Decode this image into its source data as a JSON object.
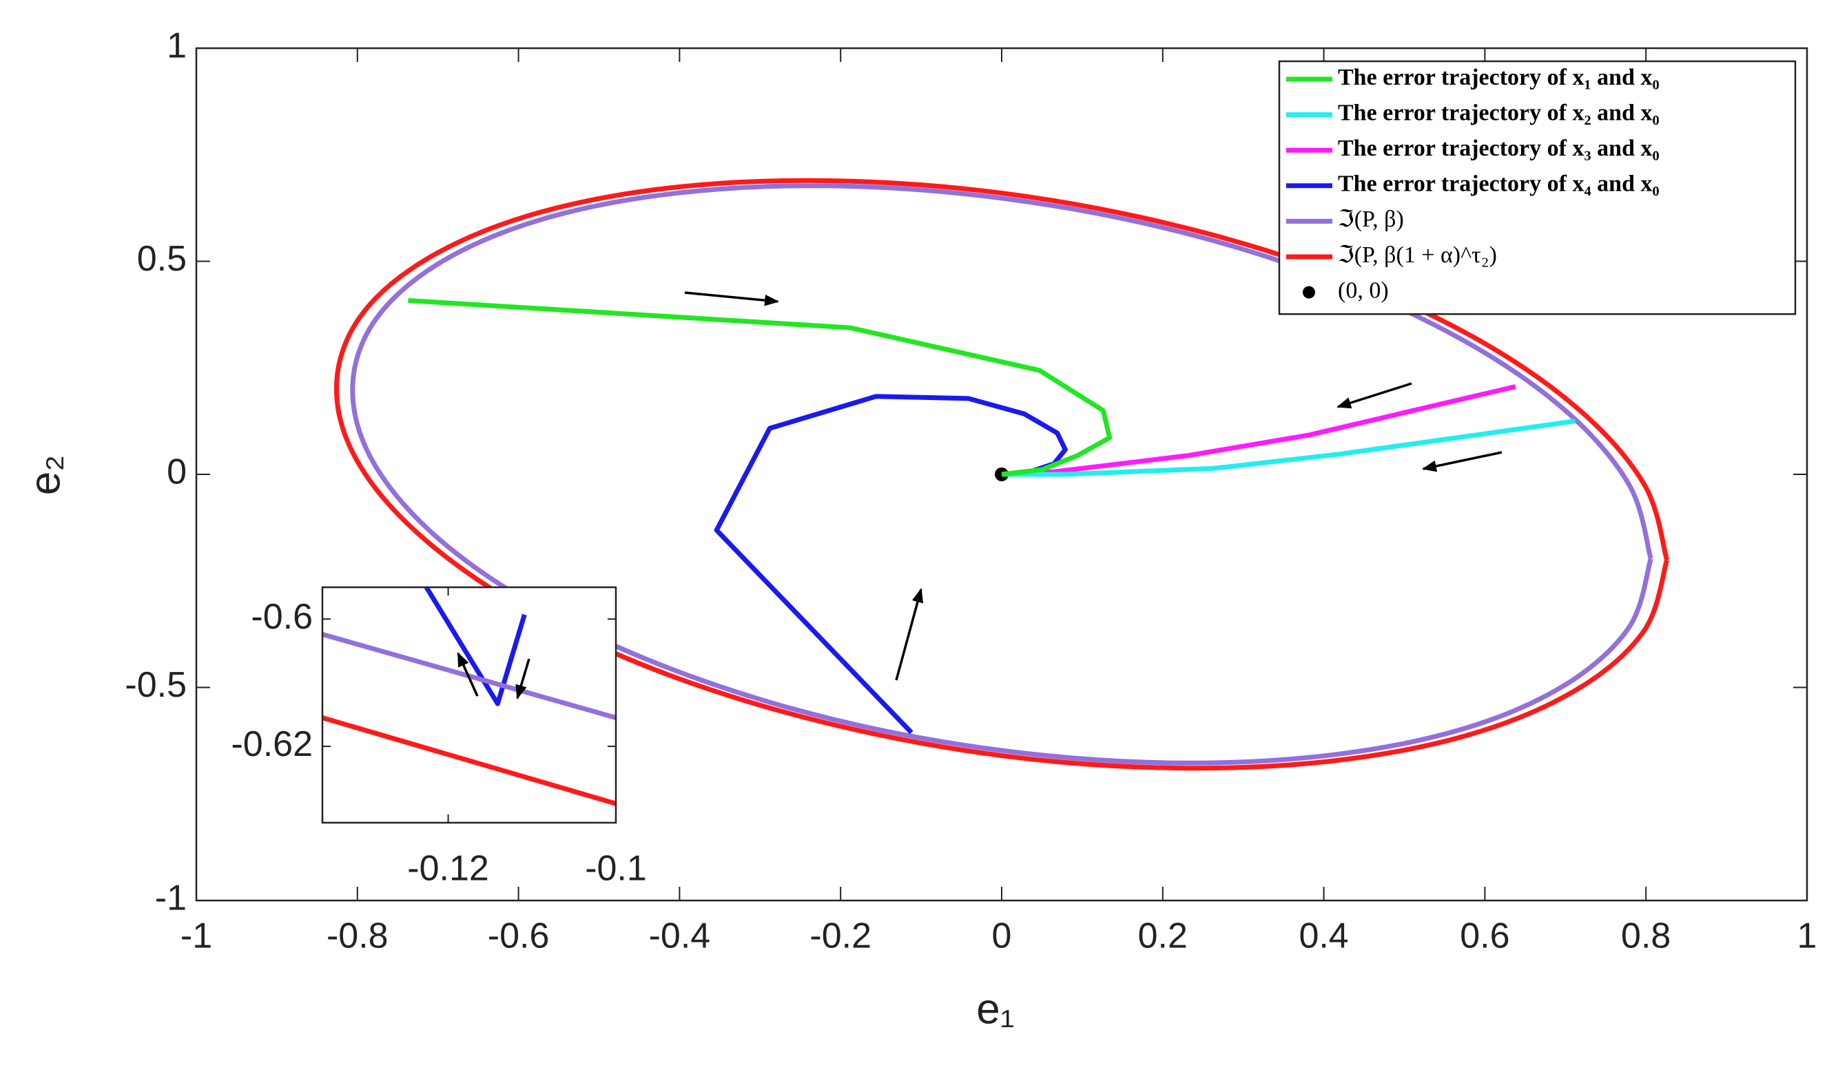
{
  "chart_data": [
    {
      "type": "line",
      "xlabel": "e₁",
      "ylabel": "e₂",
      "xlim": [
        -1,
        1
      ],
      "ylim": [
        -1,
        1
      ],
      "xticks": [
        -1,
        -0.8,
        -0.6,
        -0.4,
        -0.2,
        0,
        0.2,
        0.4,
        0.6,
        0.8,
        1
      ],
      "yticks": [
        -1,
        -0.5,
        0,
        0.5,
        1
      ],
      "grid": false,
      "legend": "upper right",
      "series": [
        {
          "name": "The error trajectory of x₁ and x₀",
          "color": "#22e622",
          "x": [
            -0.737,
            -0.188,
            0.047,
            0.126,
            0.134,
            0.094,
            0.05,
            0
          ],
          "values": [
            0.408,
            0.344,
            0.244,
            0.15,
            0.086,
            0.044,
            0.011,
            0
          ]
        },
        {
          "name": "The error trajectory of x₂ and x₀",
          "color": "#22eeee",
          "x": [
            0.712,
            0.418,
            0.263,
            0.079,
            0
          ],
          "values": [
            0.125,
            0.047,
            0.014,
            0,
            0
          ]
        },
        {
          "name": "The error trajectory of x₃ and x₀",
          "color": "#ff1aff",
          "x": [
            0.638,
            0.381,
            0.231,
            0.065,
            0
          ],
          "values": [
            0.206,
            0.092,
            0.044,
            0.006,
            0
          ]
        },
        {
          "name": "The error trajectory of x₄ and x₀",
          "color": "#1a1aee",
          "x": [
            -0.112,
            -0.354,
            -0.288,
            -0.156,
            -0.041,
            0.028,
            0.069,
            0.079,
            0.065,
            0.035,
            0
          ],
          "values": [
            -0.606,
            -0.131,
            0.108,
            0.183,
            0.178,
            0.142,
            0.097,
            0.058,
            0.025,
            0.006,
            0
          ]
        },
        {
          "name": "ℑ(P, β)",
          "color": "#9370db",
          "curve": "smooth",
          "x": [
            0.806,
            0.779,
            0.698,
            0.57,
            0.403,
            0.209,
            0,
            -0.209,
            -0.403,
            -0.57,
            -0.698,
            -0.779,
            -0.806,
            -0.779,
            -0.698,
            -0.57,
            -0.403,
            -0.209,
            0,
            0.209,
            0.403,
            0.57,
            0.698,
            0.779,
            0.806
          ],
          "values": [
            -0.198,
            -0.024,
            0.153,
            0.318,
            0.462,
            0.575,
            0.648,
            0.677,
            0.66,
            0.599,
            0.496,
            0.359,
            0.198,
            0.024,
            -0.153,
            -0.318,
            -0.462,
            -0.575,
            -0.648,
            -0.677,
            -0.66,
            -0.599,
            -0.496,
            -0.359,
            -0.198
          ]
        },
        {
          "name": "ℑ(P, β(1 + α)^τ₂)",
          "color": "#ff1a1a",
          "curve": "smooth",
          "x": [
            0.826,
            0.798,
            0.715,
            0.584,
            0.413,
            0.214,
            0,
            -0.214,
            -0.413,
            -0.584,
            -0.715,
            -0.798,
            -0.826,
            -0.798,
            -0.715,
            -0.584,
            -0.413,
            -0.214,
            0,
            0.214,
            0.413,
            0.584,
            0.715,
            0.798,
            0.826
          ],
          "values": [
            -0.201,
            -0.024,
            0.155,
            0.324,
            0.471,
            0.585,
            0.66,
            0.689,
            0.672,
            0.609,
            0.504,
            0.366,
            0.201,
            0.024,
            -0.155,
            -0.324,
            -0.471,
            -0.585,
            -0.66,
            -0.689,
            -0.672,
            -0.609,
            -0.504,
            -0.366,
            -0.201
          ]
        },
        {
          "name": "(0, 0)",
          "color": "#000000",
          "marker": "dot",
          "x": [
            0
          ],
          "values": [
            0
          ]
        }
      ]
    },
    {
      "type": "line",
      "xlim": [
        -0.135,
        -0.1
      ],
      "ylim": [
        -0.632,
        -0.595
      ],
      "xticks": [
        -0.12,
        -0.1
      ],
      "yticks": [
        -0.62,
        -0.6
      ],
      "series": [
        {
          "color": "#9370db",
          "x": [
            -0.135,
            -0.1
          ],
          "values": [
            -0.6024,
            -0.6155
          ]
        },
        {
          "color": "#ff1a1a",
          "x": [
            -0.135,
            -0.1
          ],
          "values": [
            -0.6155,
            -0.629
          ]
        },
        {
          "color": "#1a1aee",
          "x": [
            -0.1226,
            -0.1141,
            -0.1109
          ],
          "values": [
            -0.595,
            -0.6133,
            -0.5993
          ]
        }
      ]
    }
  ]
}
